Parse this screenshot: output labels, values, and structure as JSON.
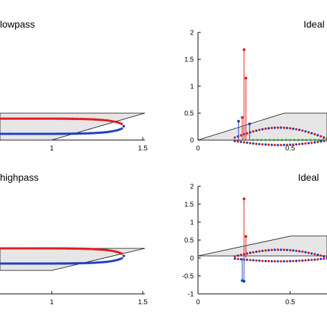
{
  "chart_data": [
    {
      "panel": "top-left",
      "type": "scatter",
      "title": "lowpass",
      "xlim": [
        0,
        1.5
      ],
      "xticks": [
        "1",
        "1.5"
      ],
      "grid": false,
      "series": [
        {
          "color": "#e41a1c",
          "x": [
            0.0,
            0.1,
            0.2,
            0.3,
            0.4,
            0.5,
            0.6,
            0.7,
            0.8,
            0.9,
            1.0,
            1.1,
            1.2,
            1.28,
            1.3
          ],
          "y": [
            0.05,
            0.05,
            0.05,
            0.05,
            0.05,
            0.05,
            0.05,
            0.05,
            0.05,
            0.05,
            0.04,
            0.03,
            0.02,
            0.01,
            0.0
          ]
        },
        {
          "color": "#1f3fbf",
          "x": [
            0.0,
            0.1,
            0.2,
            0.3,
            0.4,
            0.5,
            0.6,
            0.7,
            0.8,
            0.9,
            1.0,
            1.1,
            1.2,
            1.28,
            1.3
          ],
          "y": [
            -0.05,
            -0.05,
            -0.05,
            -0.05,
            -0.05,
            -0.05,
            -0.05,
            -0.05,
            -0.05,
            -0.05,
            -0.04,
            -0.03,
            -0.02,
            -0.01,
            0.0
          ]
        }
      ]
    },
    {
      "panel": "top-right",
      "type": "scatter",
      "title": "Ideal",
      "xlim": [
        0,
        0.7
      ],
      "ylim": [
        0,
        2
      ],
      "xticks": [
        "0",
        "0.5"
      ],
      "yticks": [
        "0",
        "0.5",
        "1",
        "1.5",
        "2"
      ],
      "grid": false,
      "series": [
        {
          "color": "#e41a1c",
          "stems": [
            [
              0.25,
              1.68
            ],
            [
              0.26,
              1.15
            ],
            [
              0.24,
              0.42
            ]
          ]
        },
        {
          "color": "#1f3fbf",
          "stems": [
            [
              0.22,
              0.35
            ],
            [
              0.28,
              0.3
            ]
          ]
        },
        {
          "color": "#2ca02c",
          "baseline": [
            0.3,
            0.7
          ]
        }
      ]
    },
    {
      "panel": "bottom-left",
      "type": "scatter",
      "title": "highpass",
      "xlim": [
        0,
        1.5
      ],
      "xticks": [
        "1",
        "1.5"
      ],
      "grid": false,
      "series": [
        {
          "color": "#e41a1c",
          "x": [
            0.0,
            0.1,
            0.2,
            0.3,
            0.4,
            0.5,
            0.6,
            0.7,
            0.8,
            0.9,
            1.0,
            1.1,
            1.2,
            1.28,
            1.3
          ],
          "y": [
            0.05,
            0.05,
            0.05,
            0.05,
            0.05,
            0.05,
            0.05,
            0.05,
            0.05,
            0.05,
            0.04,
            0.03,
            0.02,
            0.01,
            0.0
          ]
        },
        {
          "color": "#1f3fbf",
          "x": [
            0.0,
            0.1,
            0.2,
            0.3,
            0.4,
            0.5,
            0.6,
            0.7,
            0.8,
            0.9,
            1.0,
            1.1,
            1.2,
            1.28,
            1.3
          ],
          "y": [
            -0.05,
            -0.05,
            -0.05,
            -0.05,
            -0.05,
            -0.05,
            -0.05,
            -0.05,
            -0.05,
            -0.05,
            -0.04,
            -0.03,
            -0.02,
            -0.01,
            0.0
          ]
        }
      ]
    },
    {
      "panel": "bottom-right",
      "type": "scatter",
      "title": "Ideal",
      "xlim": [
        0,
        0.7
      ],
      "ylim": [
        -1,
        2
      ],
      "xticks": [
        "0",
        "0.5"
      ],
      "yticks": [
        "-1",
        "-0.5",
        "0",
        "0.5",
        "1",
        "1.5",
        "2"
      ],
      "grid": false,
      "series": [
        {
          "color": "#e41a1c",
          "stems": [
            [
              0.25,
              1.65
            ],
            [
              0.26,
              0.6
            ]
          ]
        },
        {
          "color": "#1f3fbf",
          "stems": [
            [
              0.25,
              -0.65
            ],
            [
              0.24,
              -0.63
            ]
          ]
        }
      ]
    }
  ]
}
